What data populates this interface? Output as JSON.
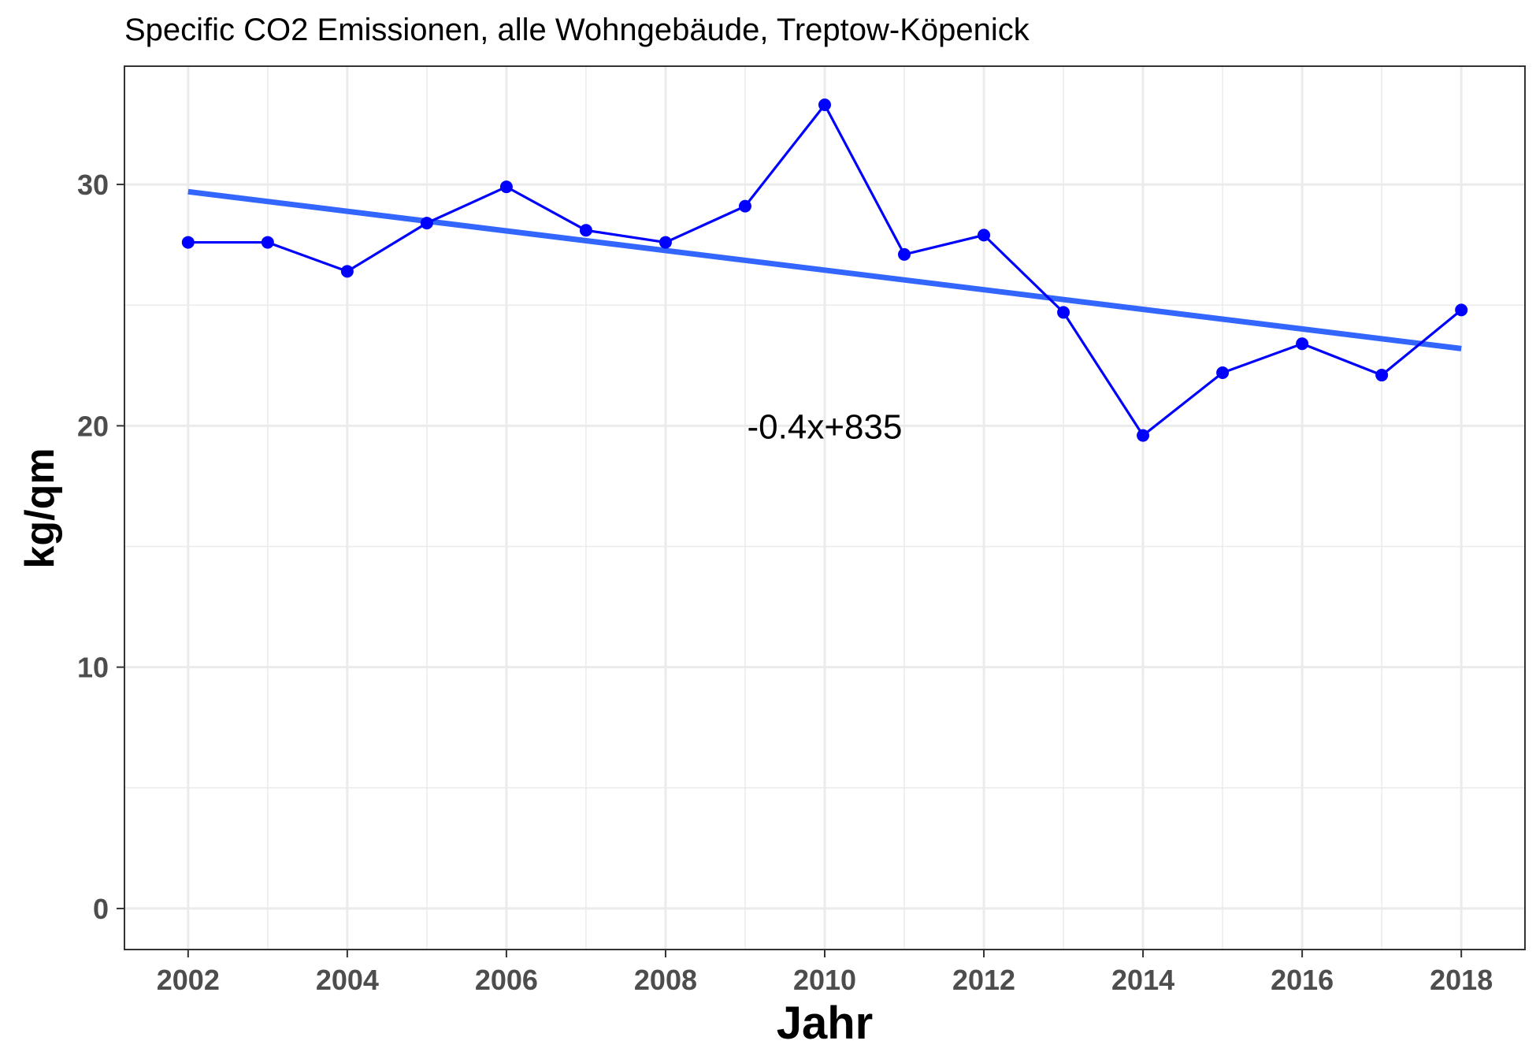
{
  "chart_data": {
    "type": "line",
    "title": "Specific CO2 Emissionen, alle Wohngebäude, Treptow-Köpenick",
    "xlabel": "Jahr",
    "ylabel": "kg/qm",
    "xlim": [
      2001.2,
      2018.8
    ],
    "ylim": [
      -1.7,
      34.9
    ],
    "x_ticks": [
      2002,
      2004,
      2006,
      2008,
      2010,
      2012,
      2014,
      2016,
      2018
    ],
    "y_ticks": [
      0,
      10,
      20,
      30
    ],
    "grid": true,
    "series": [
      {
        "color": "#0000ff",
        "x": [
          2002,
          2003,
          2004,
          2005,
          2006,
          2007,
          2008,
          2009,
          2010,
          2011,
          2012,
          2013,
          2014,
          2015,
          2016,
          2017,
          2018
        ],
        "y": [
          27.6,
          27.6,
          26.4,
          28.4,
          29.9,
          28.1,
          27.6,
          29.1,
          33.3,
          27.1,
          27.9,
          24.7,
          19.6,
          22.2,
          23.4,
          22.1,
          24.8
        ]
      }
    ],
    "trendline": {
      "color": "#3366ff",
      "x": [
        2002,
        2018
      ],
      "y": [
        29.7,
        23.2
      ]
    },
    "annotation": {
      "text": "-0.4x+835",
      "x": 2010,
      "y": 20
    }
  }
}
